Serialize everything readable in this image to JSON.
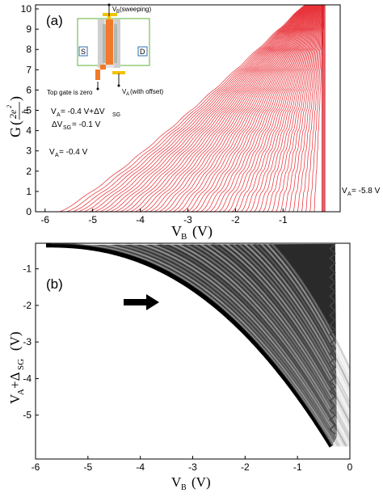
{
  "panel_a": {
    "label": "(a)",
    "ylabel_main": "G",
    "ylabel_frac_num": "2e",
    "ylabel_frac_num_sup": "2",
    "ylabel_frac_den": "h",
    "xlabel_main": "V",
    "xlabel_sub": "B",
    "xlabel_unit": "(V)",
    "annotation_formula_1": "V",
    "annotation_formula_1_sub": "A",
    "annotation_formula_1_rest": "= -0.4 V+ΔV",
    "annotation_formula_1_sub2": "SG",
    "annotation_formula_2": "ΔV",
    "annotation_formula_2_sub": "SG",
    "annotation_formula_2_rest": "= -0.1 V",
    "annotation_va_left": "V",
    "annotation_va_left_sub": "A",
    "annotation_va_left_rest": "= -0.4 V",
    "annotation_va_right": "V",
    "annotation_va_right_sub": "A",
    "annotation_va_right_rest": "= -5.8 V",
    "inset": {
      "vb_label": "V",
      "vb_sub": "B",
      "vb_rest": " (sweeping)",
      "va_label": "V",
      "va_sub": "A",
      "va_rest": "(with offset)",
      "source": "S",
      "drain": "D",
      "topgate_label": "Top gate is zero"
    }
  },
  "panel_b": {
    "label": "(b)",
    "ylabel_main": "V",
    "ylabel_sub": "A",
    "ylabel_plus": "+Δ",
    "ylabel_sub2": "SG",
    "ylabel_unit": "(V)",
    "xlabel_main": "V",
    "xlabel_sub": "B",
    "xlabel_unit": "(V)"
  },
  "colors": {
    "trace": "#e8333a",
    "trace_dense": "#d81e2a",
    "axis": "#000000",
    "inset_orange": "#f07a2a",
    "inset_gray": "#c9c9c9",
    "inset_yellow": "#f2c200",
    "inset_green": "#7bbf5a",
    "inset_blue": "#2f6fb3"
  },
  "chart_data": [
    {
      "type": "line",
      "title": "",
      "xlabel": "V_B (V)",
      "ylabel": "G (2e^2/h)",
      "xlim": [
        -6.2,
        0.2
      ],
      "ylim": [
        0,
        10.2
      ],
      "xticks": [
        -6,
        -5,
        -4,
        -3,
        -2,
        -1
      ],
      "yticks": [
        0,
        1,
        2,
        3,
        4,
        5,
        6,
        7,
        8,
        9,
        10
      ],
      "grid": false,
      "series_count": 55,
      "series_parameter": "V_A",
      "va_start": -0.4,
      "va_end": -5.8,
      "va_step": -0.1,
      "plateaus": [
        1,
        2,
        3,
        4,
        5,
        6,
        7,
        8,
        9,
        10
      ]
    },
    {
      "type": "heatmap",
      "title": "",
      "xlabel": "V_B (V)",
      "ylabel": "V_A + Δ_SG (V)",
      "xlim": [
        -6,
        0
      ],
      "ylim": [
        -6.2,
        -0.3
      ],
      "xticks": [
        -6,
        -5,
        -4,
        -3,
        -2,
        -1,
        0
      ],
      "yticks": [
        -1,
        -2,
        -3,
        -4,
        -5
      ],
      "colormap": "gray",
      "grid": false
    }
  ]
}
